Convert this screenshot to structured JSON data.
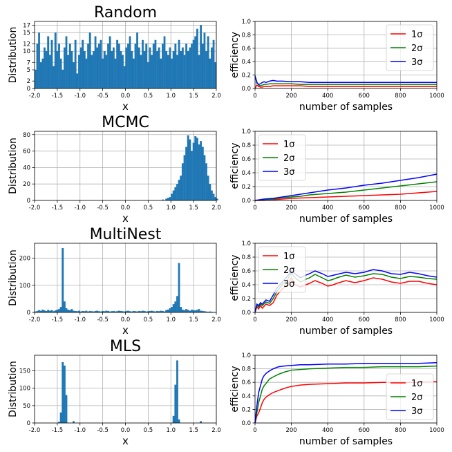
{
  "figure": {
    "background": "#ffffff"
  },
  "chart_data": [
    {
      "id": "random-hist",
      "type": "bar",
      "title": "Random",
      "xlabel": "x",
      "ylabel": "Distribution",
      "xlim": [
        -2.0,
        2.0
      ],
      "ylim": [
        0,
        18
      ],
      "grid": true,
      "color": "#1f77b4",
      "xticks": [
        "-2.0",
        "-1.5",
        "-1.0",
        "-0.5",
        "0.0",
        "0.5",
        "1.0",
        "1.5",
        "2.0"
      ],
      "yticks": [
        "0",
        "2",
        "5",
        "7",
        "10",
        "12",
        "15",
        "17"
      ],
      "bin_start": -2.0,
      "bin_width": 0.04,
      "values": [
        5,
        12,
        15,
        7,
        8,
        11,
        10,
        14,
        9,
        13,
        6,
        15,
        10,
        12,
        8,
        5,
        11,
        14,
        9,
        12,
        10,
        7,
        13,
        4,
        9,
        11,
        13,
        10,
        8,
        12,
        15,
        9,
        10,
        14,
        11,
        12,
        13,
        8,
        10,
        9,
        12,
        14,
        10,
        11,
        8,
        13,
        12,
        10,
        9,
        6,
        11,
        12,
        14,
        10,
        8,
        12,
        15,
        11,
        9,
        13,
        10,
        12,
        7,
        11,
        9,
        12,
        13,
        10,
        11,
        8,
        12,
        14,
        10,
        9,
        11,
        8,
        10,
        12,
        9,
        13,
        10,
        11,
        9,
        12,
        10,
        11,
        12,
        13,
        14,
        16,
        9,
        17,
        12,
        15,
        10,
        14,
        8,
        11,
        13,
        7
      ]
    },
    {
      "id": "random-eff",
      "type": "line",
      "title": "",
      "xlabel": "number of samples",
      "ylabel": "efficiency",
      "xlim": [
        0,
        1000
      ],
      "ylim": [
        0,
        1.0
      ],
      "grid": true,
      "legend": "top-right",
      "xticks": [
        "0",
        "200",
        "400",
        "600",
        "800",
        "1000"
      ],
      "yticks": [
        "0.0",
        "0.2",
        "0.4",
        "0.6",
        "0.8",
        "1.0"
      ],
      "x": [
        0,
        10,
        20,
        30,
        40,
        50,
        60,
        80,
        100,
        120,
        150,
        200,
        250,
        300,
        350,
        400,
        500,
        600,
        700,
        800,
        900,
        1000
      ],
      "series": [
        {
          "name": "1σ",
          "color": "#ff0000",
          "values": [
            0.0,
            0.05,
            0.03,
            0.02,
            0.02,
            0.03,
            0.03,
            0.03,
            0.04,
            0.04,
            0.04,
            0.04,
            0.04,
            0.03,
            0.03,
            0.03,
            0.03,
            0.03,
            0.03,
            0.03,
            0.03,
            0.03
          ]
        },
        {
          "name": "2σ",
          "color": "#008000",
          "values": [
            0.19,
            0.1,
            0.05,
            0.04,
            0.05,
            0.06,
            0.06,
            0.07,
            0.07,
            0.07,
            0.07,
            0.07,
            0.06,
            0.06,
            0.06,
            0.06,
            0.06,
            0.06,
            0.06,
            0.06,
            0.06,
            0.06
          ]
        },
        {
          "name": "3σ",
          "color": "#0000ff",
          "values": [
            0.19,
            0.08,
            0.06,
            0.07,
            0.09,
            0.1,
            0.09,
            0.11,
            0.12,
            0.11,
            0.11,
            0.1,
            0.1,
            0.09,
            0.09,
            0.09,
            0.09,
            0.09,
            0.09,
            0.09,
            0.09,
            0.09
          ]
        }
      ]
    },
    {
      "id": "mcmc-hist",
      "type": "bar",
      "title": "MCMC",
      "xlabel": "x",
      "ylabel": "Distribution",
      "xlim": [
        -2.0,
        2.0
      ],
      "ylim": [
        0,
        84
      ],
      "grid": true,
      "color": "#1f77b4",
      "xticks": [
        "-2.0",
        "-1.5",
        "-1.0",
        "-0.5",
        "0.0",
        "0.5",
        "1.0",
        "1.5",
        "2.0"
      ],
      "yticks": [
        "0",
        "20",
        "40",
        "60",
        "80"
      ],
      "bin_start": 0.8,
      "bin_width": 0.04,
      "values": [
        1,
        0,
        2,
        3,
        4,
        8,
        12,
        16,
        20,
        25,
        30,
        45,
        55,
        65,
        79,
        74,
        60,
        70,
        78,
        76,
        68,
        72,
        65,
        55,
        45,
        30,
        20,
        12,
        8,
        4,
        2
      ]
    },
    {
      "id": "mcmc-eff",
      "type": "line",
      "title": "",
      "xlabel": "number of samples",
      "ylabel": "efficiency",
      "xlim": [
        0,
        1000
      ],
      "ylim": [
        0,
        1.0
      ],
      "grid": true,
      "legend": "top-left",
      "xticks": [
        "0",
        "200",
        "400",
        "600",
        "800",
        "1000"
      ],
      "yticks": [
        "0.0",
        "0.2",
        "0.4",
        "0.6",
        "0.8",
        "1.0"
      ],
      "x": [
        0,
        50,
        100,
        150,
        200,
        250,
        300,
        400,
        500,
        600,
        700,
        800,
        900,
        1000
      ],
      "series": [
        {
          "name": "1σ",
          "color": "#ff0000",
          "values": [
            0.0,
            0.0,
            0.01,
            0.02,
            0.03,
            0.035,
            0.04,
            0.05,
            0.06,
            0.07,
            0.08,
            0.09,
            0.11,
            0.13
          ]
        },
        {
          "name": "2σ",
          "color": "#008000",
          "values": [
            0.0,
            0.01,
            0.02,
            0.04,
            0.05,
            0.06,
            0.08,
            0.1,
            0.12,
            0.15,
            0.18,
            0.21,
            0.24,
            0.27
          ]
        },
        {
          "name": "3σ",
          "color": "#0000ff",
          "values": [
            0.0,
            0.02,
            0.03,
            0.05,
            0.07,
            0.09,
            0.11,
            0.15,
            0.18,
            0.22,
            0.25,
            0.29,
            0.33,
            0.38
          ]
        }
      ]
    },
    {
      "id": "multinest-hist",
      "type": "bar",
      "title": "MultiNest",
      "xlabel": "x",
      "ylabel": "Distribution",
      "xlim": [
        -2.0,
        2.0
      ],
      "ylim": [
        0,
        255
      ],
      "grid": true,
      "color": "#1f77b4",
      "xticks": [
        "-2.0",
        "-1.5",
        "-1.0",
        "-0.5",
        "0.0",
        "0.5",
        "1.0",
        "1.5",
        "2.0"
      ],
      "yticks": [
        "0",
        "100",
        "200"
      ],
      "bin_start": -2.0,
      "bin_width": 0.04,
      "values": [
        3,
        5,
        8,
        6,
        10,
        7,
        5,
        9,
        6,
        8,
        4,
        7,
        10,
        12,
        20,
        237,
        40,
        15,
        10,
        8,
        12,
        6,
        5,
        4,
        6,
        3,
        5,
        4,
        6,
        3,
        5,
        4,
        3,
        5,
        6,
        4,
        3,
        5,
        4,
        6,
        5,
        3,
        4,
        5,
        3,
        4,
        6,
        5,
        4,
        3,
        5,
        6,
        4,
        3,
        5,
        4,
        3,
        5,
        4,
        6,
        5,
        3,
        4,
        5,
        6,
        4,
        3,
        5,
        4,
        6,
        5,
        3,
        8,
        10,
        15,
        20,
        30,
        40,
        60,
        182,
        20,
        10,
        8,
        12,
        9,
        6,
        10,
        8,
        7,
        9,
        12,
        6,
        5,
        4,
        3,
        2,
        3,
        2,
        1,
        1
      ]
    },
    {
      "id": "multinest-eff",
      "type": "line",
      "title": "",
      "xlabel": "number of samples",
      "ylabel": "efficiency",
      "xlim": [
        0,
        1000
      ],
      "ylim": [
        0,
        1.0
      ],
      "grid": true,
      "legend": "top-left",
      "xticks": [
        "0",
        "200",
        "400",
        "600",
        "800",
        "1000"
      ],
      "yticks": [
        "0.0",
        "0.2",
        "0.4",
        "0.6",
        "0.8",
        "1.0"
      ],
      "x": [
        0,
        10,
        20,
        30,
        40,
        60,
        80,
        100,
        120,
        150,
        180,
        200,
        220,
        250,
        280,
        300,
        330,
        370,
        400,
        420,
        450,
        500,
        550,
        600,
        650,
        700,
        750,
        800,
        850,
        900,
        950,
        1000
      ],
      "series": [
        {
          "name": "1σ",
          "color": "#ff0000",
          "values": [
            0.0,
            0.08,
            0.05,
            0.1,
            0.06,
            0.12,
            0.1,
            0.14,
            0.25,
            0.34,
            0.4,
            0.5,
            0.4,
            0.37,
            0.4,
            0.42,
            0.46,
            0.42,
            0.38,
            0.39,
            0.42,
            0.46,
            0.43,
            0.46,
            0.5,
            0.48,
            0.44,
            0.42,
            0.45,
            0.45,
            0.42,
            0.4
          ]
        },
        {
          "name": "2σ",
          "color": "#008000",
          "values": [
            0.0,
            0.1,
            0.08,
            0.12,
            0.1,
            0.15,
            0.13,
            0.2,
            0.3,
            0.4,
            0.48,
            0.57,
            0.5,
            0.44,
            0.48,
            0.5,
            0.55,
            0.5,
            0.46,
            0.47,
            0.5,
            0.54,
            0.51,
            0.53,
            0.56,
            0.55,
            0.51,
            0.49,
            0.52,
            0.51,
            0.49,
            0.48
          ]
        },
        {
          "name": "3σ",
          "color": "#0000ff",
          "values": [
            0.0,
            0.12,
            0.1,
            0.14,
            0.12,
            0.18,
            0.16,
            0.25,
            0.35,
            0.44,
            0.53,
            0.6,
            0.56,
            0.5,
            0.54,
            0.56,
            0.6,
            0.56,
            0.52,
            0.53,
            0.55,
            0.58,
            0.56,
            0.58,
            0.62,
            0.6,
            0.56,
            0.55,
            0.58,
            0.56,
            0.53,
            0.51
          ]
        }
      ]
    },
    {
      "id": "mls-hist",
      "type": "bar",
      "title": "MLS",
      "xlabel": "x",
      "ylabel": "Distribution",
      "xlim": [
        -2.0,
        2.0
      ],
      "ylim": [
        0,
        195
      ],
      "grid": true,
      "color": "#1f77b4",
      "xticks": [
        "-2.0",
        "-1.5",
        "-1.0",
        "-0.5",
        "0.0",
        "0.5",
        "1.0",
        "1.5",
        "2.0"
      ],
      "yticks": [
        "0",
        "50",
        "100",
        "150"
      ],
      "bin_start": -2.0,
      "bin_width": 0.04,
      "values": [
        0,
        0,
        0,
        0,
        0,
        0,
        0,
        0,
        0,
        0,
        0,
        0,
        0,
        3,
        30,
        175,
        165,
        80,
        0,
        0,
        0,
        5,
        0,
        0,
        0,
        0,
        0,
        0,
        0,
        0,
        0,
        0,
        0,
        0,
        0,
        0,
        0,
        0,
        0,
        0,
        0,
        0,
        0,
        0,
        0,
        0,
        0,
        0,
        0,
        0,
        0,
        0,
        0,
        0,
        0,
        0,
        0,
        0,
        0,
        0,
        0,
        0,
        0,
        0,
        0,
        0,
        0,
        0,
        0,
        0,
        0,
        0,
        0,
        0,
        0,
        0,
        20,
        110,
        180,
        10,
        0,
        0,
        0,
        0,
        0,
        0,
        0,
        0,
        0,
        0,
        0,
        5,
        0,
        0,
        0,
        0,
        0,
        0,
        0,
        0
      ]
    },
    {
      "id": "mls-eff",
      "type": "line",
      "title": "",
      "xlabel": "number of samples",
      "ylabel": "efficiency",
      "xlim": [
        0,
        1000
      ],
      "ylim": [
        0,
        1.0
      ],
      "grid": true,
      "legend": "bottom-right",
      "xticks": [
        "0",
        "200",
        "400",
        "600",
        "800",
        "1000"
      ],
      "yticks": [
        "0.0",
        "0.2",
        "0.4",
        "0.6",
        "0.8",
        "1.0"
      ],
      "x": [
        0,
        10,
        20,
        30,
        40,
        50,
        60,
        80,
        100,
        130,
        160,
        200,
        250,
        300,
        400,
        500,
        600,
        700,
        800,
        900,
        1000
      ],
      "series": [
        {
          "name": "1σ",
          "color": "#ff0000",
          "values": [
            0.0,
            0.1,
            0.15,
            0.22,
            0.3,
            0.35,
            0.38,
            0.42,
            0.45,
            0.48,
            0.51,
            0.54,
            0.56,
            0.57,
            0.58,
            0.59,
            0.59,
            0.6,
            0.6,
            0.6,
            0.61
          ]
        },
        {
          "name": "2σ",
          "color": "#008000",
          "values": [
            0.0,
            0.15,
            0.3,
            0.4,
            0.5,
            0.55,
            0.58,
            0.65,
            0.68,
            0.72,
            0.75,
            0.78,
            0.79,
            0.8,
            0.81,
            0.82,
            0.82,
            0.83,
            0.83,
            0.83,
            0.84
          ]
        },
        {
          "name": "3σ",
          "color": "#0000ff",
          "values": [
            0.0,
            0.25,
            0.45,
            0.55,
            0.65,
            0.7,
            0.73,
            0.77,
            0.8,
            0.83,
            0.84,
            0.85,
            0.86,
            0.86,
            0.87,
            0.87,
            0.88,
            0.88,
            0.88,
            0.88,
            0.89
          ]
        }
      ]
    }
  ]
}
